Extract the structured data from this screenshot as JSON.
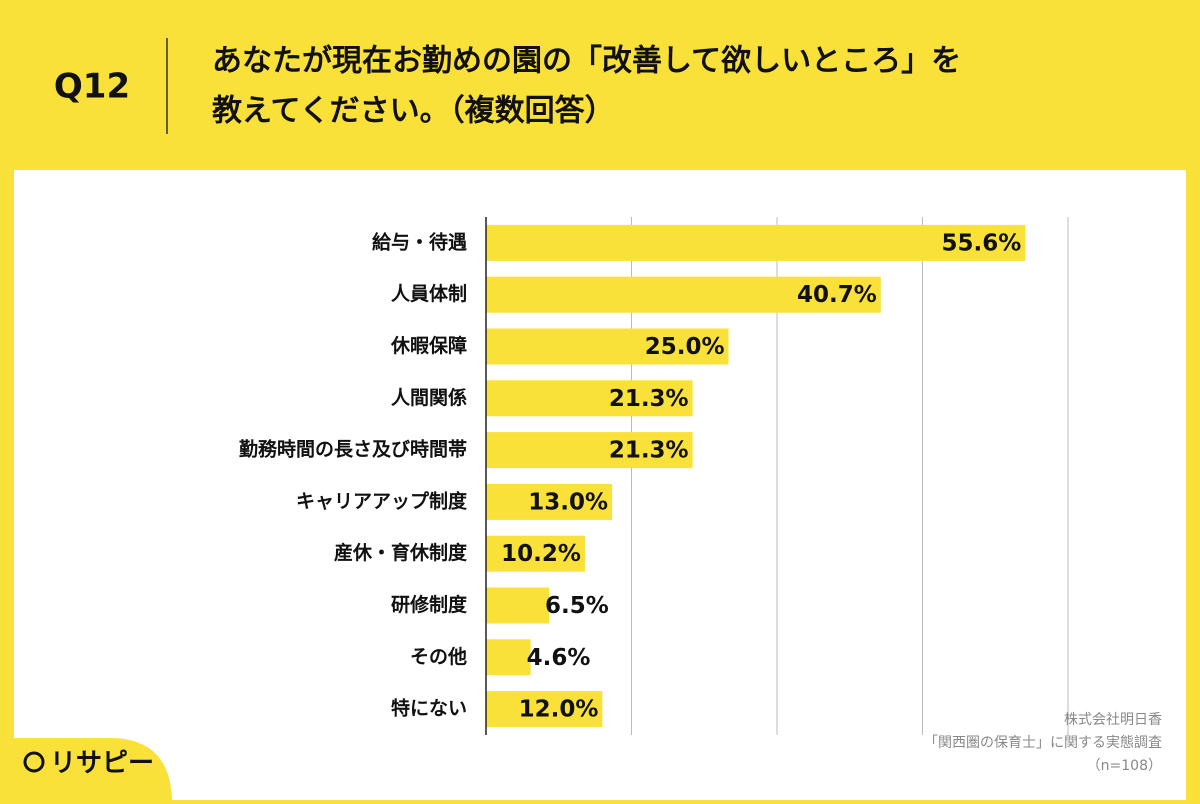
{
  "chart_data": {
    "type": "barh",
    "question": "Q12",
    "title_lines": [
      "あなたが現在お勤めの園の「改善して欲しいところ」を",
      "教えてください。（複数回答）"
    ],
    "categories": [
      "給与・待遇",
      "人員体制",
      "休暇保障",
      "人間関係",
      "勤務時間の長さ及び時間帯",
      "キャリアアップ制度",
      "産休・育休制度",
      "研修制度",
      "その他",
      "特にない"
    ],
    "values": [
      55.6,
      40.7,
      25.0,
      21.3,
      21.3,
      13.0,
      10.2,
      6.5,
      4.6,
      12.0
    ],
    "value_labels": [
      "55.6%",
      "40.7%",
      "25.0%",
      "21.3%",
      "21.3%",
      "13.0%",
      "10.2%",
      "6.5%",
      "4.6%",
      "12.0%"
    ],
    "color": "#f9e13a",
    "xlim": [
      0,
      60
    ],
    "xticks": [
      0,
      15,
      30,
      45,
      60
    ],
    "grid": true,
    "source": [
      "株式会社明日香",
      "「関西圏の保育士」に関する実態調査",
      "（n=108）"
    ],
    "brand": "リサピー"
  }
}
